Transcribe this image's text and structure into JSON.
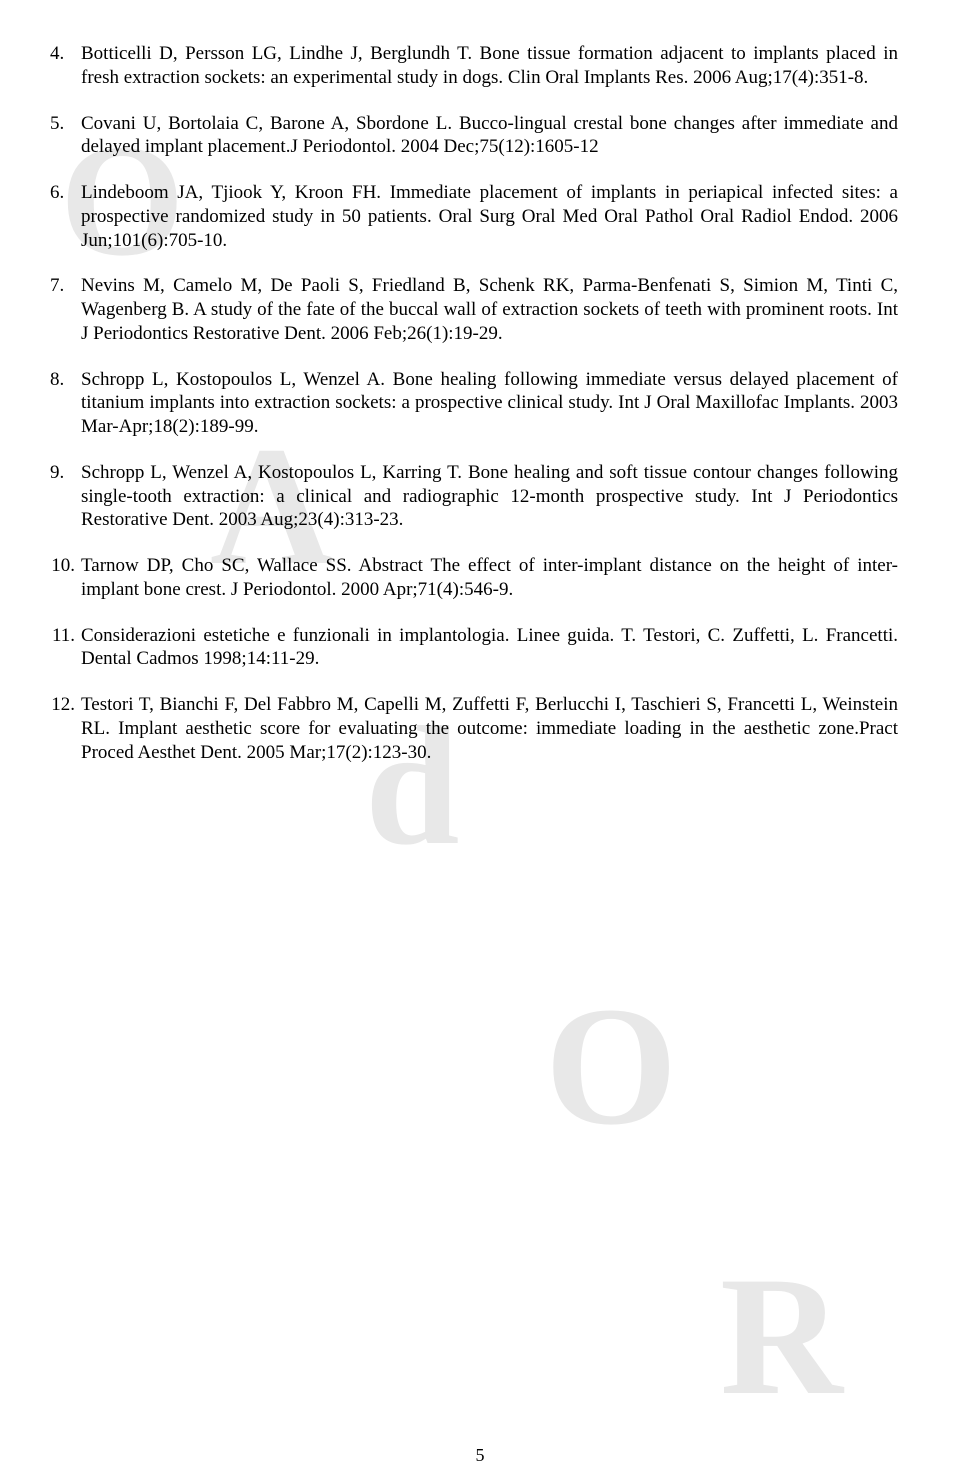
{
  "references": [
    {
      "num": "4.",
      "text": "Botticelli D, Persson LG, Lindhe J, Berglundh T. Bone tissue formation adjacent to implants placed in fresh extraction sockets: an experimental study in dogs. Clin Oral Implants Res. 2006 Aug;17(4):351-8."
    },
    {
      "num": "5.",
      "text": "Covani U, Bortolaia C, Barone A, Sbordone L. Bucco-lingual crestal bone changes after immediate and delayed implant placement.J Periodontol. 2004 Dec;75(12):1605-12"
    },
    {
      "num": "6.",
      "text": "Lindeboom JA, Tjiook Y, Kroon FH. Immediate placement of implants in periapical infected sites: a prospective randomized study in 50 patients. Oral Surg Oral Med Oral Pathol Oral Radiol Endod. 2006 Jun;101(6):705-10."
    },
    {
      "num": "7.",
      "text": "Nevins M, Camelo M, De Paoli S, Friedland B, Schenk RK, Parma-Benfenati S, Simion M, Tinti C, Wagenberg B. A study of the fate of the buccal wall of extraction sockets of teeth with prominent roots. Int J Periodontics Restorative Dent. 2006 Feb;26(1):19-29."
    },
    {
      "num": "8.",
      "text": "Schropp L, Kostopoulos L, Wenzel A. Bone healing following immediate versus delayed placement of titanium implants into extraction sockets: a prospective clinical study. Int J Oral Maxillofac Implants. 2003 Mar-Apr;18(2):189-99."
    },
    {
      "num": "9.",
      "text": "Schropp L, Wenzel A, Kostopoulos L, Karring T. Bone healing and soft tissue contour changes following single-tooth extraction: a clinical and radiographic 12-month prospective study. Int J Periodontics Restorative Dent. 2003 Aug;23(4):313-23."
    },
    {
      "num": "10.",
      "text": "Tarnow DP, Cho SC, Wallace SS. Abstract   The effect of inter-implant distance on the height of inter-implant bone crest. J Periodontol. 2000 Apr;71(4):546-9."
    },
    {
      "num": "11.",
      "text": "Considerazioni estetiche e funzionali in implantologia. Linee guida. T. Testori, C. Zuffetti, L. Francetti. Dental Cadmos 1998;14:11-29."
    },
    {
      "num": "12.",
      "text": "Testori T, Bianchi F, Del Fabbro M, Capelli M, Zuffetti F, Berlucchi I, Taschieri S, Francetti L, Weinstein RL.  Implant aesthetic score for evaluating the outcome: immediate loading in the aesthetic zone.Pract Proced Aesthet Dent. 2005 Mar;17(2):123-30."
    }
  ],
  "watermarks": {
    "o1": "O",
    "a": "A",
    "d": "d",
    "o2": "O",
    "r": "R"
  },
  "pageNumber": "5"
}
